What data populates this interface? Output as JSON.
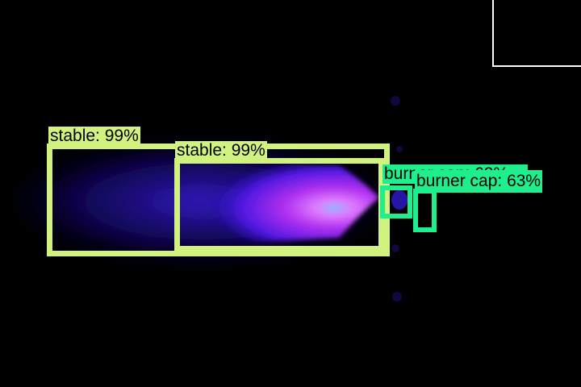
{
  "scene": {
    "description_colors": {
      "background": "#000000",
      "flame_core": "#ff66ff",
      "flame_outer": "#2a10c8",
      "stable_box": "#d2f27f",
      "burner_box": "#1fee8c"
    }
  },
  "detections": [
    {
      "id": "stable-a",
      "label": "stable: 99%",
      "kind": "stable"
    },
    {
      "id": "stable-b",
      "label": "stable: 99%",
      "kind": "stable"
    },
    {
      "id": "burner-a",
      "label": "burner cap: 63%",
      "kind": "burner",
      "note": "partially occluded label"
    },
    {
      "id": "burner-b",
      "label": "burner cap: 63%",
      "kind": "burner"
    }
  ]
}
